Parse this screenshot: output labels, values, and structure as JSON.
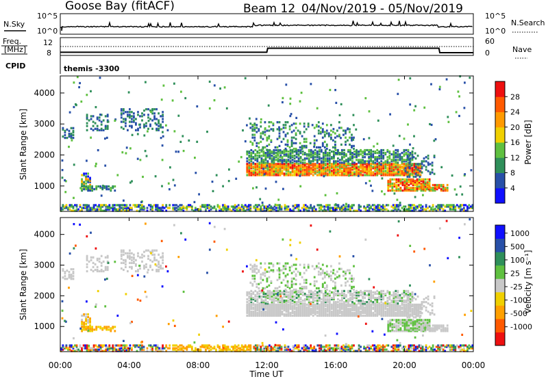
{
  "header": {
    "station": "Goose Bay (fitACF)",
    "beam": "Beam 12",
    "date_range": "04/Nov/2019 - 05/Nov/2019"
  },
  "colors": {
    "power_scale": [
      "#1010ff",
      "#2850a8",
      "#2f8f5a",
      "#5fc040",
      "#f0d000",
      "#ff9a00",
      "#ff5a00",
      "#ee1010"
    ],
    "velocity_scale": [
      "#ee1010",
      "#ff5a00",
      "#ffa000",
      "#f0d000",
      "#c8c8c8",
      "#5fc040",
      "#2f8f5a",
      "#2850a8",
      "#1010ff"
    ]
  },
  "chart_data": [
    {
      "type": "line",
      "panel": "N.Sky / N.Search",
      "left_label": "N.Sky",
      "right_label": "N.Search",
      "left_ticks": [
        "10^5",
        "10^0"
      ],
      "right_ticks": [
        "10^5",
        "10^0"
      ]
    },
    {
      "type": "line",
      "panel": "Freq / Nave",
      "left_label_1": "Freq.",
      "left_label_2": "[MHz]",
      "right_label": "Nave",
      "left_ticks": [
        "12",
        "8"
      ],
      "right_ticks": [
        "60",
        "0"
      ],
      "x_hours": [
        0,
        12,
        12.05,
        22,
        22.05,
        24
      ],
      "freq_mhz": [
        8.8,
        8.8,
        10.6,
        10.6,
        8.6,
        8.6
      ]
    },
    {
      "type": "table",
      "panel": "CPID",
      "label": "CPID",
      "value": "themis -3300"
    },
    {
      "type": "heatmap",
      "panel": "Power",
      "ylabel": "Slant Range [km]",
      "yticks": [
        "1000",
        "2000",
        "3000",
        "4000"
      ],
      "ylim": [
        180,
        4550
      ],
      "colorbar_label": "Power [dB]",
      "colorbar_ticks": [
        "4",
        "8",
        "12",
        "16",
        "20",
        "24",
        "28"
      ],
      "clim": [
        0,
        32
      ]
    },
    {
      "type": "heatmap",
      "panel": "Velocity",
      "ylabel": "Slant Range [km]",
      "yticks": [
        "1000",
        "2000",
        "3000",
        "4000"
      ],
      "ylim": [
        180,
        4550
      ],
      "colorbar_label": "Velocity [m s⁻¹]",
      "colorbar_ticks": [
        "1000",
        "500",
        "100",
        "25",
        "-25",
        "-100",
        "-500",
        "-1000"
      ]
    }
  ],
  "xaxis": {
    "label": "Time UT",
    "ticks": [
      "00:00",
      "04:00",
      "08:00",
      "12:00",
      "16:00",
      "20:00",
      "00:00"
    ]
  }
}
